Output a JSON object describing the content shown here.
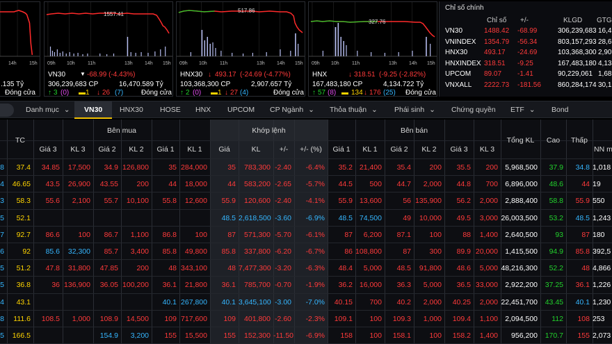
{
  "panels": [
    {
      "key": "left",
      "peak": "",
      "hours": [
        "",
        "",
        "14h",
        "15h"
      ],
      "line1": {
        "name": "",
        "arrow": "",
        "value": "",
        "change": ""
      },
      "line2": {
        "volume": "",
        "value": ".135 Tỷ"
      },
      "line3": {
        "up": "",
        "ref": "",
        "down": "",
        "status": "Đóng cửa"
      }
    },
    {
      "key": "vn30",
      "peak": "1557.41",
      "hours": [
        "09h",
        "10h",
        "11h",
        "13h",
        "14h",
        "15h"
      ],
      "line1": {
        "name": "VN30",
        "arrow": "▼",
        "value": "",
        "change": "-68.99 (-4.43%)"
      },
      "line2": {
        "volume": "306,239,683 CP",
        "value": "16,470.589 Tỷ"
      },
      "line3": {
        "up": "3",
        "ref": "0",
        "down": "1",
        "down2": "26",
        "down2p": "7",
        "status": "Đóng cửa"
      }
    },
    {
      "key": "hnx30",
      "peak": "517.86",
      "hours": [
        "09h",
        "10h",
        "11h",
        "13h",
        "14h",
        "15h"
      ],
      "line1": {
        "name": "HNX30",
        "arrow": "↓",
        "value": "493.17",
        "change": "(-24.69 (-4.77%)"
      },
      "line2": {
        "volume": "103,368,300 CP",
        "value": "2,907.657 Tỷ"
      },
      "line3": {
        "up": "2",
        "upp": "0",
        "ref": "1",
        "down": "27",
        "downp": "4",
        "status": "Đóng cửa"
      }
    },
    {
      "key": "hnx",
      "peak": "327.76",
      "hours": [
        "09h",
        "10h",
        "11h",
        "13h",
        "14h",
        "15h"
      ],
      "line1": {
        "name": "HNX",
        "arrow": "↓",
        "value": "318.51",
        "change": "(-9.25 (-2.82%)"
      },
      "line2": {
        "volume": "167,483,180 CP",
        "value": "4,134.722 Tỷ"
      },
      "line3": {
        "up": "57",
        "upp": "8",
        "ref": "134",
        "down": "176",
        "downp": "25",
        "status": "Đóng cửa"
      }
    }
  ],
  "index_table": {
    "title": "Chỉ số chính",
    "headers": [
      "Chỉ số",
      "+/-",
      "KLGD",
      "GTGI"
    ],
    "rows": [
      {
        "name": "VN30",
        "value": "1488.42",
        "change": "-68.99",
        "volume": "306,239,683",
        "gt": "16,470"
      },
      {
        "name": "VNINDEX",
        "value": "1354.79",
        "change": "-56.34",
        "volume": "803,157,293",
        "gt": "28,673"
      },
      {
        "name": "HNX30",
        "value": "493.17",
        "change": "-24.69",
        "volume": "103,368,300",
        "gt": "2,907"
      },
      {
        "name": "HNXINDEX",
        "value": "318.51",
        "change": "-9.25",
        "volume": "167,483,180",
        "gt": "4,134"
      },
      {
        "name": "UPCOM",
        "value": "89.07",
        "change": "-1.41",
        "volume": "90,229,061",
        "gt": "1,686"
      },
      {
        "name": "VNXALL",
        "value": "2222.73",
        "change": "-181.56",
        "volume": "860,284,174",
        "gt": "30,158"
      }
    ]
  },
  "nav": [
    "Danh mục",
    "VN30",
    "HNX30",
    "HOSE",
    "HNX",
    "UPCOM",
    "CP Ngành",
    "Thỏa thuận",
    "Phái sinh",
    "Chứng quyền",
    "ETF",
    "Bond"
  ],
  "board_headers": {
    "tc": "TC",
    "buy": "Bên mua",
    "match": "Khớp lệnh",
    "sell": "Bên bán",
    "total": "Tổng KL",
    "high": "Cao",
    "low": "Thấp",
    "nn": "NN m",
    "sub": [
      "Giá 3",
      "KL 3",
      "Giá 2",
      "KL 2",
      "Giá 1",
      "KL 1",
      "Giá",
      "KL",
      "+/-",
      "+/- (%)",
      "Giá 1",
      "KL 1",
      "Giá 2",
      "KL 2",
      "Giá 3",
      "KL 3"
    ]
  },
  "colors": {
    "ref": "#ffd400",
    "down": "#ff3a3a",
    "floor": "#35b6ff",
    "up": "#22d12c",
    "ceil": "#e34cf0",
    "neutral": "#ffffff"
  },
  "rows": [
    {
      "sym": "8",
      "tc": "37.4",
      "cells": [
        [
          "34.85",
          "d"
        ],
        [
          "17,500",
          "d"
        ],
        [
          "34.9",
          "d"
        ],
        [
          "126,800",
          "d"
        ],
        [
          "35",
          "d"
        ],
        [
          "284,000",
          "d"
        ],
        [
          "35",
          "d"
        ],
        [
          "783,300",
          "d"
        ],
        [
          "-2.40",
          "d"
        ],
        [
          "-6.4%",
          "d"
        ],
        [
          "35.2",
          "d"
        ],
        [
          "21,400",
          "d"
        ],
        [
          "35.4",
          "d"
        ],
        [
          "200",
          "d"
        ],
        [
          "35.5",
          "d"
        ],
        [
          "200",
          "d"
        ]
      ],
      "total": "5,968,500",
      "high": [
        "37.9",
        "u"
      ],
      "low": [
        "34.8",
        "f"
      ],
      "nn": "1,018"
    },
    {
      "sym": "4",
      "tc": "46.65",
      "cells": [
        [
          "43.5",
          "d"
        ],
        [
          "26,900",
          "d"
        ],
        [
          "43.55",
          "d"
        ],
        [
          "200",
          "d"
        ],
        [
          "44",
          "d"
        ],
        [
          "18,000",
          "d"
        ],
        [
          "44",
          "d"
        ],
        [
          "583,200",
          "d"
        ],
        [
          "-2.65",
          "d"
        ],
        [
          "-5.7%",
          "d"
        ],
        [
          "44.5",
          "d"
        ],
        [
          "500",
          "d"
        ],
        [
          "44.7",
          "d"
        ],
        [
          "2,000",
          "d"
        ],
        [
          "44.8",
          "d"
        ],
        [
          "700",
          "d"
        ]
      ],
      "total": "6,896,000",
      "high": [
        "48.6",
        "u"
      ],
      "low": [
        "44",
        "d"
      ],
      "nn": "19"
    },
    {
      "sym": "3",
      "tc": "58.3",
      "cells": [
        [
          "55.6",
          "d"
        ],
        [
          "2,100",
          "d"
        ],
        [
          "55.7",
          "d"
        ],
        [
          "10,100",
          "d"
        ],
        [
          "55.8",
          "d"
        ],
        [
          "12,600",
          "d"
        ],
        [
          "55.9",
          "d"
        ],
        [
          "120,600",
          "d"
        ],
        [
          "-2.40",
          "d"
        ],
        [
          "-4.1%",
          "d"
        ],
        [
          "55.9",
          "d"
        ],
        [
          "13,600",
          "d"
        ],
        [
          "56",
          "d"
        ],
        [
          "135,900",
          "d"
        ],
        [
          "56.2",
          "d"
        ],
        [
          "2,000",
          "d"
        ]
      ],
      "total": "2,888,400",
      "high": [
        "58.8",
        "u"
      ],
      "low": [
        "55.9",
        "d"
      ],
      "nn": "550"
    },
    {
      "sym": "5",
      "tc": "52.1",
      "cells": [
        [
          "",
          ""
        ],
        [
          "",
          ""
        ],
        [
          "",
          ""
        ],
        [
          "",
          ""
        ],
        [
          "",
          ""
        ],
        [
          "",
          ""
        ],
        [
          "48.5",
          "f"
        ],
        [
          "2,618,500",
          "f"
        ],
        [
          "-3.60",
          "f"
        ],
        [
          "-6.9%",
          "f"
        ],
        [
          "48.5",
          "f"
        ],
        [
          "74,500",
          "f"
        ],
        [
          "49",
          "d"
        ],
        [
          "10,000",
          "d"
        ],
        [
          "49.5",
          "d"
        ],
        [
          "3,000",
          "d"
        ]
      ],
      "total": "26,003,500",
      "high": [
        "53.2",
        "u"
      ],
      "low": [
        "48.5",
        "f"
      ],
      "nn": "1,243"
    },
    {
      "sym": "7",
      "tc": "92.7",
      "cells": [
        [
          "86.6",
          "d"
        ],
        [
          "100",
          "d"
        ],
        [
          "86.7",
          "d"
        ],
        [
          "1,100",
          "d"
        ],
        [
          "86.8",
          "d"
        ],
        [
          "100",
          "d"
        ],
        [
          "87",
          "d"
        ],
        [
          "571,300",
          "d"
        ],
        [
          "-5.70",
          "d"
        ],
        [
          "-6.1%",
          "d"
        ],
        [
          "87",
          "d"
        ],
        [
          "6,200",
          "d"
        ],
        [
          "87.1",
          "d"
        ],
        [
          "100",
          "d"
        ],
        [
          "88",
          "d"
        ],
        [
          "1,400",
          "d"
        ]
      ],
      "total": "2,640,500",
      "high": [
        "93",
        "u"
      ],
      "low": [
        "87",
        "d"
      ],
      "nn": "180"
    },
    {
      "sym": "6",
      "tc": "92",
      "cells": [
        [
          "85.6",
          "f"
        ],
        [
          "32,300",
          "f"
        ],
        [
          "85.7",
          "d"
        ],
        [
          "3,400",
          "d"
        ],
        [
          "85.8",
          "d"
        ],
        [
          "49,800",
          "d"
        ],
        [
          "85.8",
          "d"
        ],
        [
          "337,800",
          "d"
        ],
        [
          "-6.20",
          "d"
        ],
        [
          "-6.7%",
          "d"
        ],
        [
          "86",
          "d"
        ],
        [
          "108,800",
          "d"
        ],
        [
          "87",
          "d"
        ],
        [
          "300",
          "d"
        ],
        [
          "89.9",
          "d"
        ],
        [
          "20,000",
          "d"
        ]
      ],
      "total": "1,415,500",
      "high": [
        "94.9",
        "u"
      ],
      "low": [
        "85.8",
        "d"
      ],
      "nn": "392,5"
    },
    {
      "sym": "5",
      "tc": "51.2",
      "cells": [
        [
          "47.8",
          "d"
        ],
        [
          "31,800",
          "d"
        ],
        [
          "47.85",
          "d"
        ],
        [
          "200",
          "d"
        ],
        [
          "48",
          "d"
        ],
        [
          "343,100",
          "d"
        ],
        [
          "48",
          "d"
        ],
        [
          "7,477,300",
          "d"
        ],
        [
          "-3.20",
          "d"
        ],
        [
          "-6.3%",
          "d"
        ],
        [
          "48.4",
          "d"
        ],
        [
          "5,000",
          "d"
        ],
        [
          "48.5",
          "d"
        ],
        [
          "91,800",
          "d"
        ],
        [
          "48.6",
          "d"
        ],
        [
          "5,000",
          "d"
        ]
      ],
      "total": "48,216,300",
      "high": [
        "52.2",
        "u"
      ],
      "low": [
        "48",
        "d"
      ],
      "nn": "4,866"
    },
    {
      "sym": "5",
      "tc": "36.8",
      "cells": [
        [
          "36",
          "d"
        ],
        [
          "136,900",
          "d"
        ],
        [
          "36.05",
          "d"
        ],
        [
          "100,200",
          "d"
        ],
        [
          "36.1",
          "d"
        ],
        [
          "21,800",
          "d"
        ],
        [
          "36.1",
          "d"
        ],
        [
          "785,700",
          "d"
        ],
        [
          "-0.70",
          "d"
        ],
        [
          "-1.9%",
          "d"
        ],
        [
          "36.2",
          "d"
        ],
        [
          "16,000",
          "d"
        ],
        [
          "36.3",
          "d"
        ],
        [
          "5,000",
          "d"
        ],
        [
          "36.5",
          "d"
        ],
        [
          "33,000",
          "d"
        ]
      ],
      "total": "2,922,200",
      "high": [
        "37.25",
        "u"
      ],
      "low": [
        "36.1",
        "d"
      ],
      "nn": "1,226"
    },
    {
      "sym": "4",
      "tc": "43.1",
      "cells": [
        [
          "",
          ""
        ],
        [
          "",
          ""
        ],
        [
          "",
          ""
        ],
        [
          "",
          ""
        ],
        [
          "40.1",
          "f"
        ],
        [
          "267,800",
          "f"
        ],
        [
          "40.1",
          "f"
        ],
        [
          "3,645,100",
          "f"
        ],
        [
          "-3.00",
          "f"
        ],
        [
          "-7.0%",
          "f"
        ],
        [
          "40.15",
          "d"
        ],
        [
          "700",
          "d"
        ],
        [
          "40.2",
          "d"
        ],
        [
          "2,000",
          "d"
        ],
        [
          "40.25",
          "d"
        ],
        [
          "2,000",
          "d"
        ]
      ],
      "total": "22,451,700",
      "high": [
        "43.45",
        "u"
      ],
      "low": [
        "40.1",
        "f"
      ],
      "nn": "1,230"
    },
    {
      "sym": "8",
      "tc": "111.6",
      "cells": [
        [
          "108.5",
          "d"
        ],
        [
          "1,000",
          "d"
        ],
        [
          "108.9",
          "d"
        ],
        [
          "14,500",
          "d"
        ],
        [
          "109",
          "d"
        ],
        [
          "717,600",
          "d"
        ],
        [
          "109",
          "d"
        ],
        [
          "401,800",
          "d"
        ],
        [
          "-2.60",
          "d"
        ],
        [
          "-2.3%",
          "d"
        ],
        [
          "109.1",
          "d"
        ],
        [
          "100",
          "d"
        ],
        [
          "109.3",
          "d"
        ],
        [
          "1,000",
          "d"
        ],
        [
          "109.4",
          "d"
        ],
        [
          "1,100",
          "d"
        ]
      ],
      "total": "2,094,500",
      "high": [
        "112",
        "u"
      ],
      "low": [
        "108",
        "d"
      ],
      "nn": "253"
    },
    {
      "sym": "5",
      "tc": "166.5",
      "cells": [
        [
          "",
          ""
        ],
        [
          "",
          ""
        ],
        [
          "154.9",
          "f"
        ],
        [
          "3,200",
          "f"
        ],
        [
          "155",
          "d"
        ],
        [
          "15,500",
          "d"
        ],
        [
          "155",
          "d"
        ],
        [
          "152,300",
          "d"
        ],
        [
          "-11.50",
          "d"
        ],
        [
          "-6.9%",
          "d"
        ],
        [
          "158",
          "d"
        ],
        [
          "100",
          "d"
        ],
        [
          "158.1",
          "d"
        ],
        [
          "100",
          "d"
        ],
        [
          "158.2",
          "d"
        ],
        [
          "1,400",
          "d"
        ]
      ],
      "total": "956,200",
      "high": [
        "170.7",
        "u"
      ],
      "low": [
        "155",
        "d"
      ],
      "nn": "2,073"
    }
  ]
}
